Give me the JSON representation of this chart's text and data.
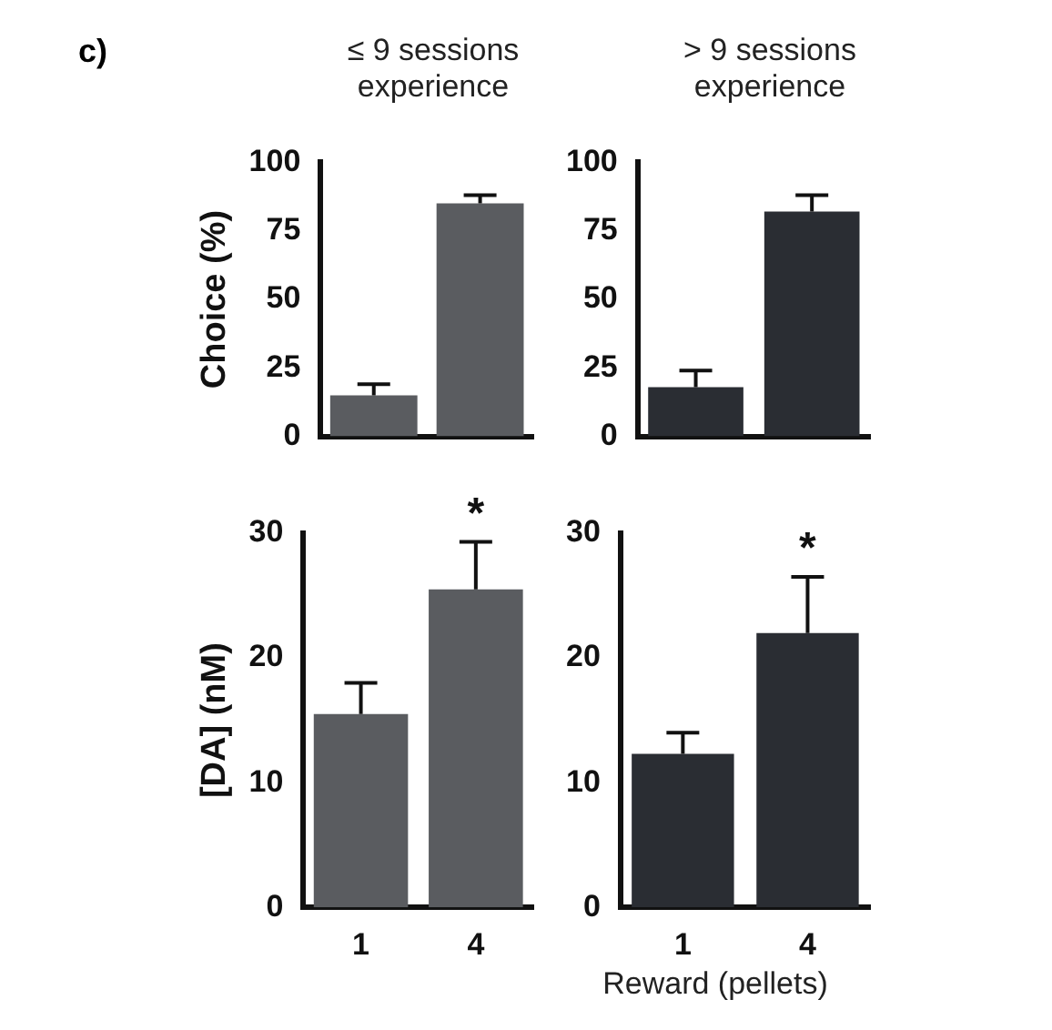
{
  "chart_data": [
    {
      "type": "bar",
      "title": "≤ 9 sessions experience",
      "ylabel": "Choice (%)",
      "categories": [
        "1",
        "4"
      ],
      "values": [
        15,
        85
      ],
      "errors": [
        4,
        3
      ],
      "color": "#5a5c60",
      "ylim": [
        0,
        100
      ],
      "yticks": [
        0,
        25,
        50,
        75,
        100
      ],
      "tick_labels": "y",
      "annotations": [
        "c)"
      ]
    },
    {
      "type": "bar",
      "title": "> 9 sessions experience",
      "categories": [
        "1",
        "4"
      ],
      "values": [
        18,
        82
      ],
      "errors": [
        6,
        6
      ],
      "color": "#2a2d33",
      "ylim": [
        0,
        100
      ],
      "yticks": [
        0,
        25,
        50,
        75,
        100
      ],
      "tick_labels": "y"
    },
    {
      "type": "bar",
      "ylabel": "[DA] (nM)",
      "xlabel": "Reward (pellets)",
      "categories": [
        "1",
        "4"
      ],
      "values": [
        15.5,
        25.5
      ],
      "errors": [
        2.5,
        3.8
      ],
      "color": "#5a5c60",
      "ylim": [
        0,
        30
      ],
      "yticks": [
        0,
        10,
        20,
        30
      ],
      "annotations": [
        {
          "text": "*",
          "x": "4",
          "y": 29.3
        }
      ]
    },
    {
      "type": "bar",
      "categories": [
        "1",
        "4"
      ],
      "values": [
        12.3,
        22
      ],
      "errors": [
        1.7,
        4.5
      ],
      "color": "#2a2d33",
      "ylim": [
        0,
        30
      ],
      "yticks": [
        0,
        10,
        20,
        30
      ],
      "annotations": [
        {
          "text": "*",
          "x": "4",
          "y": 26.5
        }
      ]
    }
  ]
}
